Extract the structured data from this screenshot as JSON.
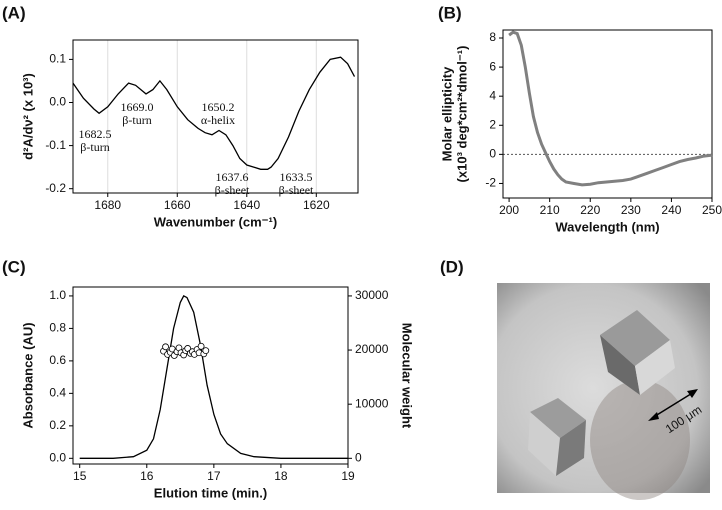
{
  "panels": [
    "(A)",
    "(B)",
    "(C)",
    "(D)"
  ],
  "chart_data": [
    {
      "type": "line",
      "xlabel": "Wavenumber (cm⁻¹)",
      "ylabel": [
        "d²A/dν² (x 10³)"
      ],
      "xlim": [
        1690,
        1608
      ],
      "xticks": [
        1680,
        1660,
        1640,
        1620
      ],
      "xgrid": true,
      "ylim": [
        -0.21,
        0.145
      ],
      "yticks": [
        0.1,
        {
          "value": 0,
          "label": "0.0"
        },
        -0.1,
        -0.2
      ],
      "series": [
        {
          "color": "#000000",
          "style": "line",
          "x": [
            1690,
            1687,
            1684,
            1682.5,
            1680,
            1677,
            1674,
            1672,
            1669,
            1667,
            1665,
            1663,
            1660,
            1657,
            1654,
            1652,
            1650,
            1648,
            1646,
            1644,
            1642,
            1640,
            1638,
            1636,
            1634,
            1633,
            1631,
            1628,
            1625,
            1622,
            1619,
            1616,
            1613,
            1611,
            1609
          ],
          "values": [
            0.045,
            0.01,
            -0.015,
            -0.025,
            -0.01,
            0.02,
            0.045,
            0.04,
            0.02,
            0.03,
            0.05,
            0.03,
            -0.01,
            -0.04,
            -0.06,
            -0.07,
            -0.075,
            -0.065,
            -0.075,
            -0.1,
            -0.13,
            -0.145,
            -0.15,
            -0.155,
            -0.155,
            -0.15,
            -0.13,
            -0.08,
            -0.02,
            0.03,
            0.07,
            0.1,
            0.105,
            0.09,
            0.06
          ]
        }
      ],
      "annotations": [
        [
          "1682.5",
          "β-turn"
        ],
        [
          "1669.0",
          "β-turn"
        ],
        [
          "1650.2",
          "α-helix"
        ],
        [
          "1637.6",
          "β-sheet"
        ],
        [
          "1633.5",
          "β-sheet"
        ]
      ]
    },
    {
      "type": "line",
      "xlabel": "Wavelength (nm)",
      "ylabel": [
        "Molar ellipticity",
        "(x10³ deg*cm²*dmol⁻¹)"
      ],
      "xlim": [
        198.5,
        250
      ],
      "xticks": [
        200,
        210,
        220,
        230,
        240,
        250
      ],
      "ylim": [
        -3,
        8.55
      ],
      "yticks": [
        8,
        6,
        4,
        2,
        0,
        -2
      ],
      "zero_line": true,
      "series": [
        {
          "color": "#808080",
          "style": "line",
          "x": [
            200,
            201,
            202,
            203,
            204,
            205,
            206,
            207,
            208,
            209,
            210,
            211,
            212,
            213,
            214,
            216,
            218,
            220,
            222,
            224,
            226,
            228,
            230,
            232,
            234,
            236,
            238,
            240,
            242,
            244,
            246,
            248,
            250
          ],
          "values": [
            8.2,
            8.4,
            8.3,
            7.5,
            6,
            4.2,
            2.6,
            1.5,
            0.7,
            0.1,
            -0.5,
            -1,
            -1.4,
            -1.7,
            -1.9,
            -2.0,
            -2.1,
            -2.05,
            -1.95,
            -1.9,
            -1.85,
            -1.8,
            -1.7,
            -1.5,
            -1.3,
            -1.1,
            -0.9,
            -0.7,
            -0.5,
            -0.35,
            -0.25,
            -0.12,
            -0.05
          ]
        }
      ]
    },
    {
      "type": "line",
      "xlabel": "Elution time (min.)",
      "ylabel": [
        "Absorbance (AU)"
      ],
      "y2label": "Molecular weight",
      "xlim": [
        14.9,
        19
      ],
      "xticks": [
        15,
        16,
        17,
        18,
        19
      ],
      "ylim": [
        -0.035,
        1.055
      ],
      "yticks": [
        {
          "value": 0,
          "label": "0.0"
        },
        0.2,
        0.4,
        0.6,
        0.8,
        {
          "value": 1,
          "label": "1.0"
        }
      ],
      "y2lim": [
        -1050,
        31650
      ],
      "y2ticks": [
        0,
        10000,
        20000,
        30000
      ],
      "series": [
        {
          "color": "#000000",
          "style": "line",
          "x": [
            15,
            15.5,
            15.8,
            16.0,
            16.1,
            16.2,
            16.3,
            16.4,
            16.5,
            16.55,
            16.6,
            16.7,
            16.8,
            16.9,
            17.0,
            17.1,
            17.2,
            17.4,
            17.6,
            18,
            19
          ],
          "values": [
            0,
            0,
            0.01,
            0.05,
            0.12,
            0.3,
            0.55,
            0.8,
            0.96,
            1.0,
            0.99,
            0.9,
            0.7,
            0.45,
            0.27,
            0.15,
            0.09,
            0.03,
            0.01,
            0,
            0
          ]
        },
        {
          "color": "#000000",
          "style": "markers",
          "axis": "y2",
          "x": [
            16.25,
            16.28,
            16.31,
            16.35,
            16.38,
            16.41,
            16.45,
            16.48,
            16.51,
            16.55,
            16.58,
            16.61,
            16.65,
            16.68,
            16.71,
            16.75,
            16.78,
            16.81,
            16.85,
            16.88
          ],
          "values": [
            19800,
            20600,
            19200,
            19600,
            20200,
            19000,
            19700,
            20400,
            19500,
            19100,
            19900,
            20300,
            19400,
            19700,
            19200,
            20100,
            19500,
            20700,
            19300,
            19900
          ]
        }
      ]
    }
  ],
  "image": {
    "scale_label": "100 μm"
  }
}
